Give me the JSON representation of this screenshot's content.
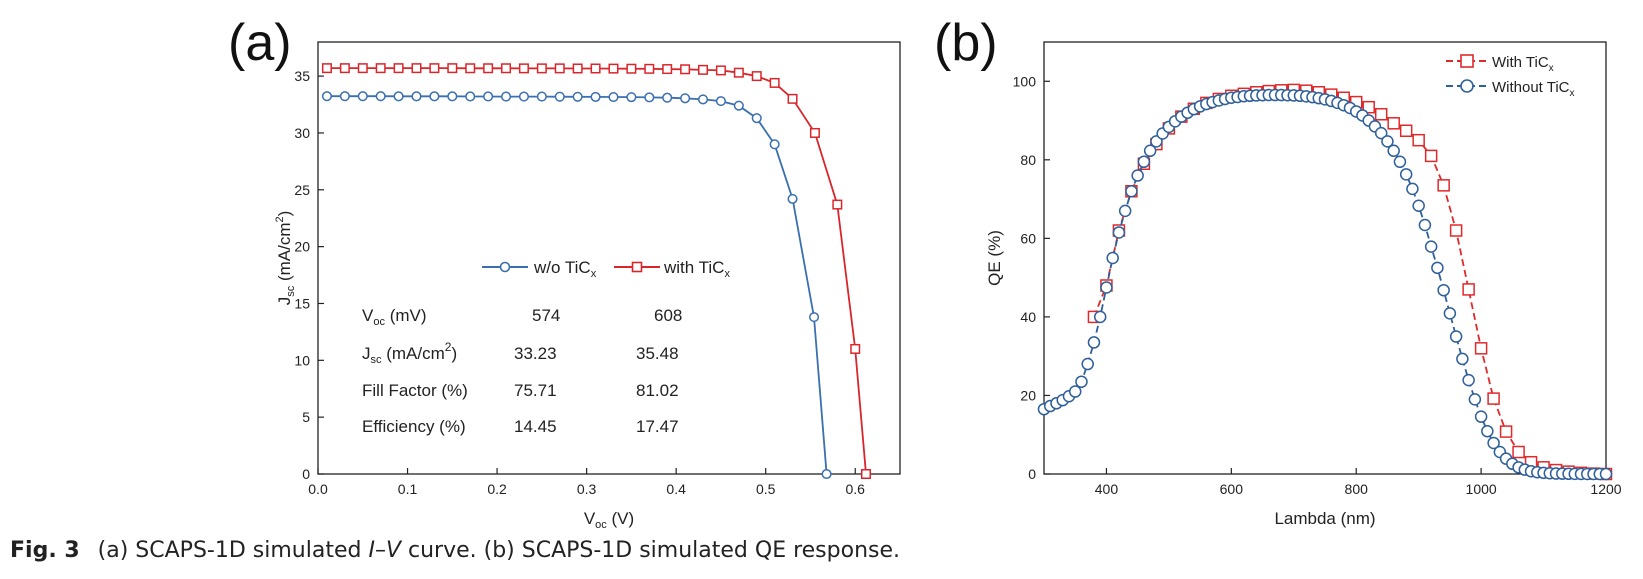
{
  "caption": {
    "fig_label": "Fig. 3",
    "part1": "(a) SCAPS-1D simulated ",
    "part_I": "I",
    "part_dash": "–",
    "part_V": "V",
    "part2": " curve. (b) SCAPS-1D simulated QE response."
  },
  "chart_data": [
    {
      "panel_label": "(a)",
      "type": "line",
      "xlabel": "V",
      "xlabel_sub": "oc",
      "xlabel_unit": " (V)",
      "ylabel": "J",
      "ylabel_sub": "sc",
      "ylabel_unit_pre": " (mA/cm",
      "ylabel_unit_sup": "2",
      "ylabel_unit_post": ")",
      "xlim": [
        0.0,
        0.65
      ],
      "ylim": [
        0,
        38
      ],
      "xticks": [
        "0.0",
        "0.1",
        "0.2",
        "0.3",
        "0.4",
        "0.5",
        "0.6"
      ],
      "yticks": [
        "0",
        "5",
        "10",
        "15",
        "20",
        "25",
        "30",
        "35"
      ],
      "grid": false,
      "legend_position": "center-right",
      "series": [
        {
          "name": "w/o  TiC",
          "name_sub": "x",
          "color": "#3a6fb0",
          "marker": "circle",
          "x": [
            0.01,
            0.03,
            0.05,
            0.07,
            0.09,
            0.11,
            0.13,
            0.15,
            0.17,
            0.19,
            0.21,
            0.23,
            0.25,
            0.27,
            0.29,
            0.31,
            0.33,
            0.35,
            0.37,
            0.39,
            0.41,
            0.43,
            0.45,
            0.47,
            0.49,
            0.51,
            0.53,
            0.554,
            0.568
          ],
          "y": [
            33.23,
            33.23,
            33.23,
            33.23,
            33.22,
            33.22,
            33.22,
            33.22,
            33.21,
            33.21,
            33.2,
            33.2,
            33.2,
            33.19,
            33.18,
            33.17,
            33.16,
            33.15,
            33.13,
            33.1,
            33.05,
            32.95,
            32.8,
            32.4,
            31.3,
            29.0,
            24.2,
            13.8,
            0
          ]
        },
        {
          "name": "with TiC",
          "name_sub": "x",
          "color": "#d9262b",
          "marker": "square",
          "x": [
            0.01,
            0.03,
            0.05,
            0.07,
            0.09,
            0.11,
            0.13,
            0.15,
            0.17,
            0.19,
            0.21,
            0.23,
            0.25,
            0.27,
            0.29,
            0.31,
            0.33,
            0.35,
            0.37,
            0.39,
            0.41,
            0.43,
            0.45,
            0.47,
            0.49,
            0.51,
            0.53,
            0.555,
            0.58,
            0.6,
            0.612
          ],
          "y": [
            35.7,
            35.7,
            35.7,
            35.7,
            35.7,
            35.7,
            35.7,
            35.7,
            35.69,
            35.69,
            35.69,
            35.68,
            35.68,
            35.68,
            35.67,
            35.67,
            35.66,
            35.65,
            35.64,
            35.62,
            35.6,
            35.55,
            35.5,
            35.3,
            35.0,
            34.4,
            33.0,
            30.0,
            23.7,
            11.0,
            0
          ]
        }
      ],
      "table": {
        "rows": [
          {
            "label": "V",
            "label_sub": "oc",
            "label_rest": " (mV)",
            "label_sup": "",
            "label_end": "",
            "v1": "574",
            "v2": "608"
          },
          {
            "label": "J",
            "label_sub": "sc",
            "label_rest": " (mA/cm",
            "label_sup": "2",
            "label_end": ")",
            "v1": "33.23",
            "v2": "35.48"
          },
          {
            "label": "Fill Factor (%)",
            "label_sub": "",
            "label_rest": "",
            "label_sup": "",
            "label_end": "",
            "v1": "75.71",
            "v2": "81.02"
          },
          {
            "label": "Efficiency (%)",
            "label_sub": "",
            "label_rest": "",
            "label_sup": "",
            "label_end": "",
            "v1": "14.45",
            "v2": "17.47"
          }
        ]
      }
    },
    {
      "panel_label": "(b)",
      "type": "line",
      "xlabel": "Lambda (nm)",
      "ylabel": "QE (%)",
      "xlim": [
        300,
        1200
      ],
      "ylim": [
        0,
        110
      ],
      "xticks": [
        400,
        600,
        800,
        1000,
        1200
      ],
      "yticks": [
        0,
        20,
        40,
        60,
        80,
        100
      ],
      "grid": false,
      "legend_position": "top-right",
      "series": [
        {
          "name": "With TiC",
          "name_sub": "x",
          "color": "#e0292b",
          "marker": "square",
          "x": [
            380,
            400,
            420,
            440,
            460,
            480,
            500,
            520,
            540,
            560,
            580,
            600,
            620,
            640,
            660,
            680,
            700,
            720,
            740,
            760,
            780,
            800,
            820,
            840,
            860,
            880,
            900,
            920,
            940,
            960,
            980,
            1000,
            1020,
            1040,
            1060,
            1080,
            1100,
            1120,
            1140,
            1160,
            1180,
            1200
          ],
          "y": [
            40,
            48,
            62,
            72,
            79,
            84,
            88,
            91,
            93,
            94.5,
            95.5,
            96.3,
            96.8,
            97.2,
            97.5,
            97.7,
            97.8,
            97.6,
            97.2,
            96.6,
            95.8,
            94.7,
            93.4,
            91.6,
            89.3,
            87.4,
            85,
            81,
            73.5,
            62,
            47,
            32,
            19.2,
            10.8,
            5.6,
            3.0,
            1.7,
            1.0,
            0.6,
            0.3,
            0.1,
            0
          ]
        },
        {
          "name": "Without TiC",
          "name_sub": "x",
          "color": "#2f5f9a",
          "marker": "circle",
          "x": [
            300,
            310,
            320,
            330,
            340,
            350,
            360,
            370,
            380,
            390,
            400,
            410,
            420,
            430,
            440,
            450,
            460,
            470,
            480,
            490,
            500,
            510,
            520,
            530,
            540,
            550,
            560,
            570,
            580,
            590,
            600,
            610,
            620,
            630,
            640,
            650,
            660,
            670,
            680,
            690,
            700,
            710,
            720,
            730,
            740,
            750,
            760,
            770,
            780,
            790,
            800,
            810,
            820,
            830,
            840,
            850,
            860,
            870,
            880,
            890,
            900,
            910,
            920,
            930,
            940,
            950,
            960,
            970,
            980,
            990,
            1000,
            1010,
            1020,
            1030,
            1040,
            1050,
            1060,
            1070,
            1080,
            1090,
            1100,
            1110,
            1120,
            1130,
            1140,
            1150,
            1160,
            1170,
            1180,
            1190,
            1200
          ],
          "y": [
            16.5,
            17.3,
            18.0,
            18.8,
            19.8,
            21.0,
            23.5,
            28,
            33.5,
            40,
            47.5,
            55,
            61.5,
            67,
            72,
            76,
            79.5,
            82.3,
            84.7,
            86.7,
            88.4,
            89.8,
            91.0,
            92.0,
            92.9,
            93.6,
            94.2,
            94.7,
            95.1,
            95.5,
            95.8,
            96.0,
            96.2,
            96.3,
            96.4,
            96.45,
            96.5,
            96.5,
            96.5,
            96.45,
            96.4,
            96.3,
            96.15,
            95.95,
            95.7,
            95.4,
            95.0,
            94.5,
            93.9,
            93.2,
            92.3,
            91.3,
            90.0,
            88.5,
            86.8,
            84.7,
            82.3,
            79.5,
            76.3,
            72.6,
            68.3,
            63.4,
            57.9,
            52.5,
            46.8,
            40.9,
            35.0,
            29.3,
            23.9,
            19.0,
            14.6,
            10.9,
            7.9,
            5.6,
            3.9,
            2.6,
            1.7,
            1.1,
            0.7,
            0.45,
            0.3,
            0.2,
            0.12,
            0.08,
            0.05,
            0.03,
            0.02,
            0.01,
            0.01,
            0.0,
            0
          ]
        }
      ]
    }
  ]
}
